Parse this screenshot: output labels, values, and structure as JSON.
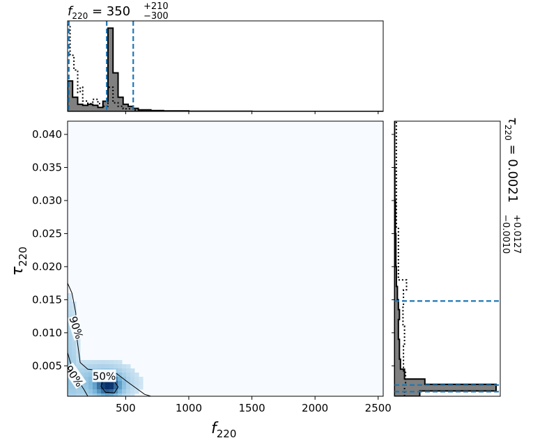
{
  "chart_data": {
    "type": "corner",
    "title_top": {
      "var": "f",
      "sub": "220",
      "eq": " = 350",
      "sup": "+210",
      "inf": "−300"
    },
    "title_right": {
      "var": "τ",
      "sub": "220",
      "eq": " = 0.0021",
      "sup": "+0.0127",
      "inf": "−0.0010"
    },
    "xlabel": {
      "var": "f",
      "sub": "220"
    },
    "ylabel": {
      "var": "τ",
      "sub": "220"
    },
    "xlim": [
      40,
      2540
    ],
    "ylim": [
      0.0004,
      0.042
    ],
    "xticks": [
      500,
      1000,
      1500,
      2000,
      2500
    ],
    "xtick_labels": [
      "500",
      "1000",
      "1500",
      "2000",
      "2500"
    ],
    "yticks": [
      0.005,
      0.01,
      0.015,
      0.02,
      0.025,
      0.03,
      0.035,
      0.04
    ],
    "ytick_labels": [
      "0.005",
      "0.010",
      "0.015",
      "0.020",
      "0.025",
      "0.030",
      "0.035",
      "0.040"
    ],
    "colors": {
      "hist_fill": "#808080",
      "hist_edge": "#000000",
      "quantile": "#1f77b4",
      "density_peak": "#08306b",
      "density_low": "#f7fbff"
    },
    "f_hist": {
      "edges": [
        40,
        80,
        120,
        160,
        200,
        240,
        280,
        320,
        360,
        400,
        440,
        480,
        520,
        560,
        600,
        700,
        800,
        1000,
        1500,
        2540
      ],
      "density": [
        0.3,
        0.14,
        0.07,
        0.06,
        0.07,
        0.06,
        0.04,
        0.1,
        0.82,
        0.38,
        0.14,
        0.07,
        0.05,
        0.03,
        0.015,
        0.008,
        0.005,
        0.002,
        0.0
      ]
    },
    "f_prior": {
      "x": [
        40,
        60,
        60,
        90,
        90,
        120,
        120,
        140,
        140,
        160,
        160,
        200,
        200,
        240,
        240,
        280,
        280,
        320,
        320,
        360,
        360,
        400,
        400,
        440,
        440,
        480,
        480,
        560,
        560,
        640,
        640,
        700
      ],
      "density": [
        1.0,
        1.0,
        0.65,
        0.65,
        0.48,
        0.48,
        0.22,
        0.22,
        0.28,
        0.28,
        0.12,
        0.12,
        0.09,
        0.09,
        0.14,
        0.14,
        0.09,
        0.09,
        0.06,
        0.06,
        0.28,
        0.28,
        0.1,
        0.1,
        0.06,
        0.06,
        0.03,
        0.03,
        0.015,
        0.015,
        0.0,
        0.0
      ]
    },
    "f_quantiles": [
      50,
      350,
      560
    ],
    "tau_hist": {
      "edges": [
        0.0004,
        0.0012,
        0.0022,
        0.003,
        0.0045,
        0.006,
        0.0075,
        0.009,
        0.0105,
        0.012,
        0.0135,
        0.015,
        0.017,
        0.02,
        0.025,
        0.03,
        0.035,
        0.042
      ],
      "density": [
        0.25,
        1.0,
        0.3,
        0.1,
        0.06,
        0.05,
        0.05,
        0.04,
        0.04,
        0.05,
        0.04,
        0.03,
        0.02,
        0.015,
        0.01,
        0.005,
        0.003
      ]
    },
    "tau_prior": {
      "y": [
        0.0004,
        0.0022,
        0.0022,
        0.004,
        0.004,
        0.008,
        0.008,
        0.011,
        0.011,
        0.014,
        0.014,
        0.0165,
        0.0165,
        0.018,
        0.018,
        0.026,
        0.026,
        0.042
      ],
      "density": [
        0.1,
        0.1,
        0.11,
        0.11,
        0.09,
        0.09,
        0.1,
        0.1,
        0.085,
        0.085,
        0.09,
        0.09,
        0.12,
        0.12,
        0.04,
        0.04,
        0.02,
        0.02
      ]
    },
    "tau_quantiles": [
      0.0011,
      0.0021,
      0.0148
    ],
    "density_blobs": [
      {
        "x": 360,
        "y": 0.0021,
        "sx": 55,
        "sy": 0.0009,
        "w": 1.0
      },
      {
        "x": 300,
        "y": 0.0025,
        "sx": 160,
        "sy": 0.0018,
        "w": 0.16
      },
      {
        "x": 60,
        "y": 0.006,
        "sx": 40,
        "sy": 0.006,
        "w": 0.08
      }
    ],
    "contour_50": [
      [
        325,
        0.0032
      ],
      [
        400,
        0.003
      ],
      [
        440,
        0.0018
      ],
      [
        410,
        0.0009
      ],
      [
        340,
        0.001
      ],
      [
        305,
        0.0019
      ]
    ],
    "contour_90_outer": [
      [
        40,
        0.0175
      ],
      [
        75,
        0.016
      ],
      [
        105,
        0.013
      ],
      [
        115,
        0.009
      ],
      [
        140,
        0.0055
      ],
      [
        200,
        0.0045
      ],
      [
        330,
        0.0042
      ],
      [
        430,
        0.0038
      ],
      [
        520,
        0.0025
      ],
      [
        650,
        0.0007
      ],
      [
        700,
        0.0004
      ]
    ],
    "contour_90_inner": [
      [
        40,
        0.007
      ],
      [
        70,
        0.005
      ],
      [
        110,
        0.0032
      ],
      [
        170,
        0.0014
      ],
      [
        200,
        0.0004
      ]
    ],
    "contour_labels": [
      {
        "text": "90%",
        "x": 112,
        "y": 0.0108,
        "rotate": 72
      },
      {
        "text": "90%",
        "x": 95,
        "y": 0.0035,
        "rotate": 55
      },
      {
        "text": "50%",
        "x": 330,
        "y": 0.0035,
        "rotate": 0
      }
    ]
  }
}
